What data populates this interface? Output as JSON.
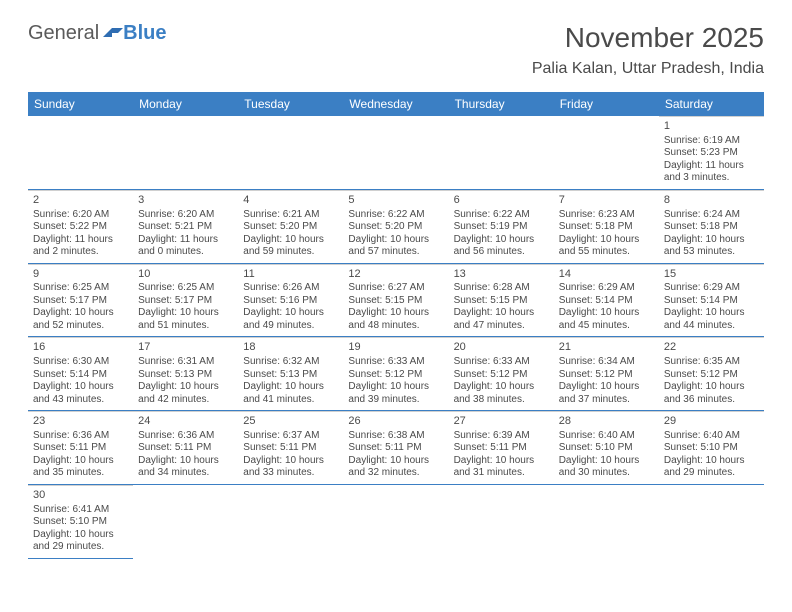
{
  "logo": {
    "text1": "General",
    "text2": "Blue"
  },
  "title": "November 2025",
  "location": "Palia Kalan, Uttar Pradesh, India",
  "colors": {
    "header_bg": "#3b7fc4",
    "header_text": "#ffffff",
    "cell_border_top": "#d0d0d0",
    "cell_border_bottom": "#3b7fc4",
    "text": "#4a4a4a",
    "background": "#ffffff"
  },
  "typography": {
    "title_fontsize": 28,
    "location_fontsize": 16,
    "header_fontsize": 12,
    "cell_fontsize": 10,
    "daynum_fontsize": 11
  },
  "weekdays": [
    "Sunday",
    "Monday",
    "Tuesday",
    "Wednesday",
    "Thursday",
    "Friday",
    "Saturday"
  ],
  "blank_leading": 6,
  "days": [
    {
      "n": "1",
      "sunrise": "Sunrise: 6:19 AM",
      "sunset": "Sunset: 5:23 PM",
      "day1": "Daylight: 11 hours",
      "day2": "and 3 minutes."
    },
    {
      "n": "2",
      "sunrise": "Sunrise: 6:20 AM",
      "sunset": "Sunset: 5:22 PM",
      "day1": "Daylight: 11 hours",
      "day2": "and 2 minutes."
    },
    {
      "n": "3",
      "sunrise": "Sunrise: 6:20 AM",
      "sunset": "Sunset: 5:21 PM",
      "day1": "Daylight: 11 hours",
      "day2": "and 0 minutes."
    },
    {
      "n": "4",
      "sunrise": "Sunrise: 6:21 AM",
      "sunset": "Sunset: 5:20 PM",
      "day1": "Daylight: 10 hours",
      "day2": "and 59 minutes."
    },
    {
      "n": "5",
      "sunrise": "Sunrise: 6:22 AM",
      "sunset": "Sunset: 5:20 PM",
      "day1": "Daylight: 10 hours",
      "day2": "and 57 minutes."
    },
    {
      "n": "6",
      "sunrise": "Sunrise: 6:22 AM",
      "sunset": "Sunset: 5:19 PM",
      "day1": "Daylight: 10 hours",
      "day2": "and 56 minutes."
    },
    {
      "n": "7",
      "sunrise": "Sunrise: 6:23 AM",
      "sunset": "Sunset: 5:18 PM",
      "day1": "Daylight: 10 hours",
      "day2": "and 55 minutes."
    },
    {
      "n": "8",
      "sunrise": "Sunrise: 6:24 AM",
      "sunset": "Sunset: 5:18 PM",
      "day1": "Daylight: 10 hours",
      "day2": "and 53 minutes."
    },
    {
      "n": "9",
      "sunrise": "Sunrise: 6:25 AM",
      "sunset": "Sunset: 5:17 PM",
      "day1": "Daylight: 10 hours",
      "day2": "and 52 minutes."
    },
    {
      "n": "10",
      "sunrise": "Sunrise: 6:25 AM",
      "sunset": "Sunset: 5:17 PM",
      "day1": "Daylight: 10 hours",
      "day2": "and 51 minutes."
    },
    {
      "n": "11",
      "sunrise": "Sunrise: 6:26 AM",
      "sunset": "Sunset: 5:16 PM",
      "day1": "Daylight: 10 hours",
      "day2": "and 49 minutes."
    },
    {
      "n": "12",
      "sunrise": "Sunrise: 6:27 AM",
      "sunset": "Sunset: 5:15 PM",
      "day1": "Daylight: 10 hours",
      "day2": "and 48 minutes."
    },
    {
      "n": "13",
      "sunrise": "Sunrise: 6:28 AM",
      "sunset": "Sunset: 5:15 PM",
      "day1": "Daylight: 10 hours",
      "day2": "and 47 minutes."
    },
    {
      "n": "14",
      "sunrise": "Sunrise: 6:29 AM",
      "sunset": "Sunset: 5:14 PM",
      "day1": "Daylight: 10 hours",
      "day2": "and 45 minutes."
    },
    {
      "n": "15",
      "sunrise": "Sunrise: 6:29 AM",
      "sunset": "Sunset: 5:14 PM",
      "day1": "Daylight: 10 hours",
      "day2": "and 44 minutes."
    },
    {
      "n": "16",
      "sunrise": "Sunrise: 6:30 AM",
      "sunset": "Sunset: 5:14 PM",
      "day1": "Daylight: 10 hours",
      "day2": "and 43 minutes."
    },
    {
      "n": "17",
      "sunrise": "Sunrise: 6:31 AM",
      "sunset": "Sunset: 5:13 PM",
      "day1": "Daylight: 10 hours",
      "day2": "and 42 minutes."
    },
    {
      "n": "18",
      "sunrise": "Sunrise: 6:32 AM",
      "sunset": "Sunset: 5:13 PM",
      "day1": "Daylight: 10 hours",
      "day2": "and 41 minutes."
    },
    {
      "n": "19",
      "sunrise": "Sunrise: 6:33 AM",
      "sunset": "Sunset: 5:12 PM",
      "day1": "Daylight: 10 hours",
      "day2": "and 39 minutes."
    },
    {
      "n": "20",
      "sunrise": "Sunrise: 6:33 AM",
      "sunset": "Sunset: 5:12 PM",
      "day1": "Daylight: 10 hours",
      "day2": "and 38 minutes."
    },
    {
      "n": "21",
      "sunrise": "Sunrise: 6:34 AM",
      "sunset": "Sunset: 5:12 PM",
      "day1": "Daylight: 10 hours",
      "day2": "and 37 minutes."
    },
    {
      "n": "22",
      "sunrise": "Sunrise: 6:35 AM",
      "sunset": "Sunset: 5:12 PM",
      "day1": "Daylight: 10 hours",
      "day2": "and 36 minutes."
    },
    {
      "n": "23",
      "sunrise": "Sunrise: 6:36 AM",
      "sunset": "Sunset: 5:11 PM",
      "day1": "Daylight: 10 hours",
      "day2": "and 35 minutes."
    },
    {
      "n": "24",
      "sunrise": "Sunrise: 6:36 AM",
      "sunset": "Sunset: 5:11 PM",
      "day1": "Daylight: 10 hours",
      "day2": "and 34 minutes."
    },
    {
      "n": "25",
      "sunrise": "Sunrise: 6:37 AM",
      "sunset": "Sunset: 5:11 PM",
      "day1": "Daylight: 10 hours",
      "day2": "and 33 minutes."
    },
    {
      "n": "26",
      "sunrise": "Sunrise: 6:38 AM",
      "sunset": "Sunset: 5:11 PM",
      "day1": "Daylight: 10 hours",
      "day2": "and 32 minutes."
    },
    {
      "n": "27",
      "sunrise": "Sunrise: 6:39 AM",
      "sunset": "Sunset: 5:11 PM",
      "day1": "Daylight: 10 hours",
      "day2": "and 31 minutes."
    },
    {
      "n": "28",
      "sunrise": "Sunrise: 6:40 AM",
      "sunset": "Sunset: 5:10 PM",
      "day1": "Daylight: 10 hours",
      "day2": "and 30 minutes."
    },
    {
      "n": "29",
      "sunrise": "Sunrise: 6:40 AM",
      "sunset": "Sunset: 5:10 PM",
      "day1": "Daylight: 10 hours",
      "day2": "and 29 minutes."
    },
    {
      "n": "30",
      "sunrise": "Sunrise: 6:41 AM",
      "sunset": "Sunset: 5:10 PM",
      "day1": "Daylight: 10 hours",
      "day2": "and 29 minutes."
    }
  ]
}
